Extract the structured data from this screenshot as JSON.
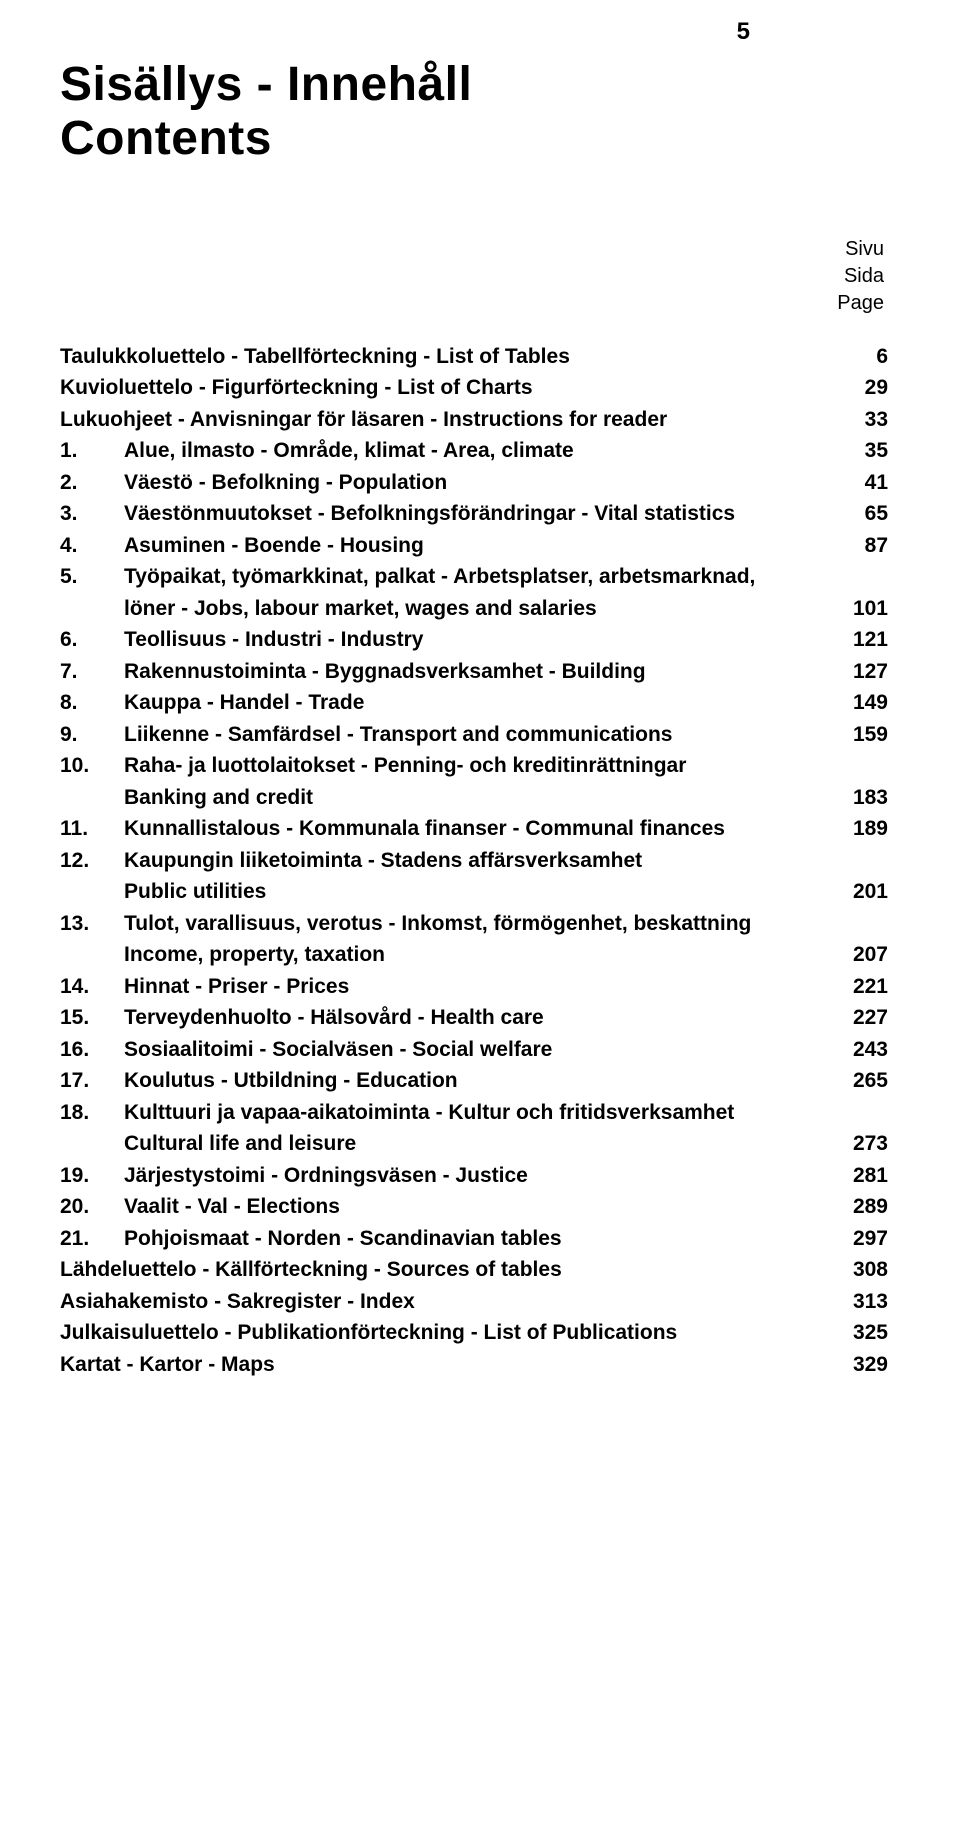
{
  "page_number": "5",
  "title_line1": "Sisällys - Innehåll",
  "title_line2": "Contents",
  "column_headers": [
    "Sivu",
    "Sida",
    "Page"
  ],
  "entries": [
    {
      "num": "",
      "label": "Taulukkoluettelo - Tabellförteckning - List of Tables",
      "page": "6"
    },
    {
      "num": "",
      "label": "Kuvioluettelo - Figurförteckning - List of Charts",
      "page": "29"
    },
    {
      "num": "",
      "label": "Lukuohjeet - Anvisningar för läsaren - Instructions for reader",
      "page": "33"
    },
    {
      "num": "1.",
      "label": "Alue, ilmasto - Område, klimat - Area, climate",
      "page": "35"
    },
    {
      "num": "2.",
      "label": "Väestö - Befolkning - Population",
      "page": "41"
    },
    {
      "num": "3.",
      "label": "Väestönmuutokset - Befolkningsförändringar - Vital statistics",
      "page": "65"
    },
    {
      "num": "4.",
      "label": "Asuminen - Boende - Housing",
      "page": "87"
    },
    {
      "num": "5.",
      "label": "Työpaikat, työmarkkinat, palkat - Arbetsplatser, arbetsmarknad,",
      "page": ""
    },
    {
      "num": "",
      "label": "löner - Jobs, labour market, wages and salaries",
      "page": "101",
      "indent": true
    },
    {
      "num": "6.",
      "label": "Teollisuus - Industri - Industry",
      "page": "121"
    },
    {
      "num": "7.",
      "label": "Rakennustoiminta - Byggnadsverksamhet - Building",
      "page": "127"
    },
    {
      "num": "8.",
      "label": "Kauppa - Handel - Trade",
      "page": "149"
    },
    {
      "num": "9.",
      "label": "Liikenne - Samfärdsel - Transport and communications",
      "page": "159"
    },
    {
      "num": "10.",
      "label": "Raha- ja luottolaitokset - Penning- och kreditinrättningar",
      "page": ""
    },
    {
      "num": "",
      "label": "Banking and credit",
      "page": "183",
      "indent": true
    },
    {
      "num": "11.",
      "label": "Kunnallistalous - Kommunala finanser - Communal finances",
      "page": "189"
    },
    {
      "num": "12.",
      "label": "Kaupungin liiketoiminta - Stadens affärsverksamhet",
      "page": ""
    },
    {
      "num": "",
      "label": "Public utilities",
      "page": "201",
      "indent": true
    },
    {
      "num": "13.",
      "label": "Tulot, varallisuus, verotus - Inkomst, förmögenhet, beskattning",
      "page": ""
    },
    {
      "num": "",
      "label": "Income, property, taxation",
      "page": "207",
      "indent": true
    },
    {
      "num": "14.",
      "label": "Hinnat - Priser - Prices",
      "page": "221"
    },
    {
      "num": "15.",
      "label": "Terveydenhuolto - Hälsovård - Health care",
      "page": "227"
    },
    {
      "num": "16.",
      "label": "Sosiaalitoimi - Socialväsen - Social welfare",
      "page": "243"
    },
    {
      "num": "17.",
      "label": "Koulutus - Utbildning - Education",
      "page": "265"
    },
    {
      "num": "18.",
      "label": "Kulttuuri ja vapaa-aikatoiminta - Kultur och fritidsverksamhet",
      "page": ""
    },
    {
      "num": "",
      "label": "Cultural life and leisure",
      "page": "273",
      "indent": true
    },
    {
      "num": "19.",
      "label": "Järjestystoimi - Ordningsväsen - Justice",
      "page": "281"
    },
    {
      "num": "20.",
      "label": "Vaalit - Val - Elections",
      "page": "289"
    },
    {
      "num": "21.",
      "label": "Pohjoismaat - Norden - Scandinavian tables",
      "page": "297"
    },
    {
      "num": "",
      "label": "Lähdeluettelo - Källförteckning - Sources of tables",
      "page": "308"
    },
    {
      "num": "",
      "label": "Asiahakemisto - Sakregister - Index",
      "page": "313"
    },
    {
      "num": "",
      "label": "Julkaisuluettelo - Publikationförteckning - List of Publications",
      "page": "325"
    },
    {
      "num": "",
      "label": "Kartat - Kartor - Maps",
      "page": "329"
    }
  ]
}
